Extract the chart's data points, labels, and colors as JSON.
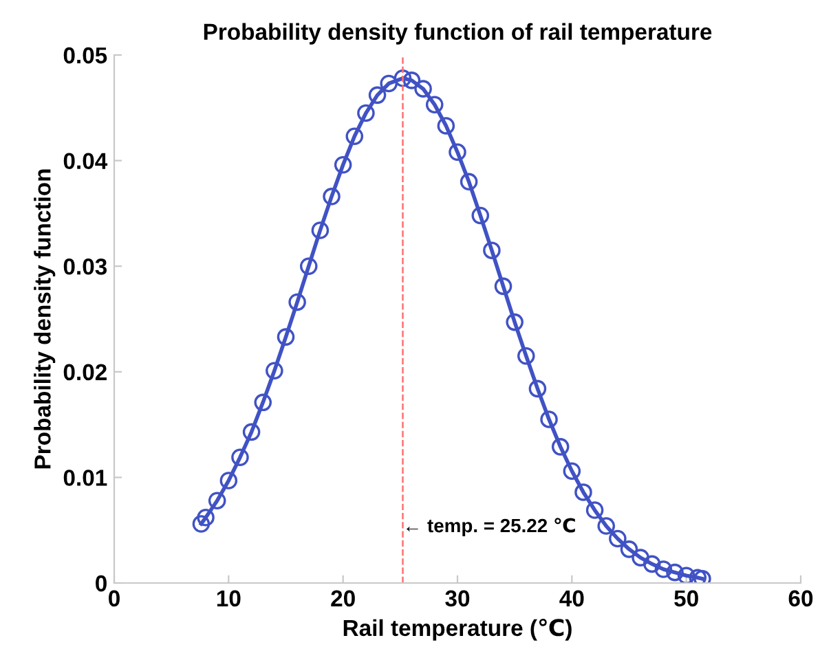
{
  "chart_data": {
    "type": "line",
    "title": "Probability density function of rail temperature",
    "xlabel": "Rail temperature (℃)",
    "ylabel": "Probability density function",
    "x": [
      7.6,
      8,
      9,
      10,
      11,
      12,
      13,
      14,
      15,
      16,
      17,
      18,
      19,
      20,
      21,
      22,
      23,
      24,
      25.22,
      26,
      27,
      28,
      29,
      30,
      31,
      32,
      33,
      34,
      35,
      36,
      37,
      38,
      39,
      40,
      41,
      42,
      43,
      44,
      45,
      46,
      47,
      48,
      49,
      50,
      51,
      51.4
    ],
    "series": [
      {
        "color": "#4052c4",
        "values": [
          0.0056,
          0.0062,
          0.0078,
          0.0097,
          0.0119,
          0.0143,
          0.0171,
          0.0201,
          0.0233,
          0.0266,
          0.03,
          0.0334,
          0.0366,
          0.0396,
          0.0423,
          0.0445,
          0.0462,
          0.0473,
          0.0478,
          0.0476,
          0.0468,
          0.0453,
          0.0433,
          0.0408,
          0.038,
          0.0348,
          0.0315,
          0.0281,
          0.0247,
          0.0215,
          0.0184,
          0.0155,
          0.0129,
          0.0106,
          0.0086,
          0.0069,
          0.0054,
          0.0042,
          0.0032,
          0.0024,
          0.0018,
          0.0013,
          0.001,
          0.0007,
          0.0005,
          0.0004
        ]
      }
    ],
    "marker": "circle",
    "line_style": "solid",
    "xlim": [
      0,
      60
    ],
    "xticks": [
      0,
      10,
      20,
      30,
      40,
      50,
      60
    ],
    "ylim": [
      0,
      0.05
    ],
    "yticks": [
      0,
      0.01,
      0.02,
      0.03,
      0.04,
      0.05
    ],
    "grid": false,
    "legend": false,
    "ref_lines": [
      {
        "axis": "x",
        "value": 25.22,
        "color": "#ff7070",
        "line_style": "dashed"
      }
    ],
    "annotations": [
      {
        "text": "← temp. = 25.22 ℃",
        "x": 25.22,
        "y": 0.0053
      }
    ]
  }
}
